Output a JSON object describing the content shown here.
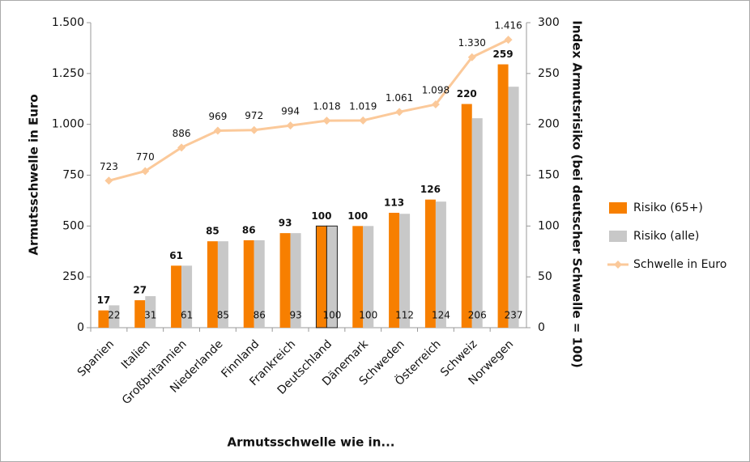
{
  "chart_data": {
    "type": "bar",
    "xlabel": "Armutsschwelle wie in...",
    "ylabel": "Armutsschwelle in Euro",
    "y2label": "Index Armutsrisiko (bei deutscher Schwelle = 100)",
    "categories": [
      "Spanien",
      "Italien",
      "Großbritannien",
      "Niederlande",
      "Finnland",
      "Frankreich",
      "Deutschland",
      "Dänemark",
      "Schweden",
      "Österreich",
      "Schweiz",
      "Norwegen"
    ],
    "series": [
      {
        "name": "Risiko (65+)",
        "color": "#f77f00",
        "type": "bar",
        "axis": "y2",
        "values": [
          17,
          27,
          61,
          85,
          86,
          93,
          100,
          100,
          113,
          126,
          220,
          259
        ]
      },
      {
        "name": "Risiko (alle)",
        "color": "#c8c8c8",
        "type": "bar",
        "axis": "y2",
        "values": [
          22,
          31,
          61,
          85,
          86,
          93,
          100,
          100,
          112,
          124,
          206,
          237
        ]
      },
      {
        "name": "Schwelle in Euro",
        "color": "#fbc99a",
        "type": "line",
        "values": [
          723,
          770,
          886,
          969,
          972,
          994,
          1018,
          1019,
          1061,
          1098,
          1330,
          1416
        ],
        "value_labels": [
          "723",
          "770",
          "886",
          "969",
          "972",
          "994",
          "1.018",
          "1.019",
          "1.061",
          "1.098",
          "1.330",
          "1.416"
        ]
      }
    ],
    "highlight": "Deutschland",
    "ylim": [
      0,
      1500
    ],
    "yticks": [
      0,
      250,
      500,
      750,
      {
        "value": 1000,
        "label": "1.000"
      },
      {
        "value": 1250,
        "label": "1.250"
      },
      {
        "value": 1500,
        "label": "1.500"
      }
    ],
    "y2lim": [
      0,
      300
    ],
    "y2ticks": [
      0,
      50,
      100,
      150,
      200,
      250,
      300
    ],
    "legend": "right",
    "grid": false
  }
}
